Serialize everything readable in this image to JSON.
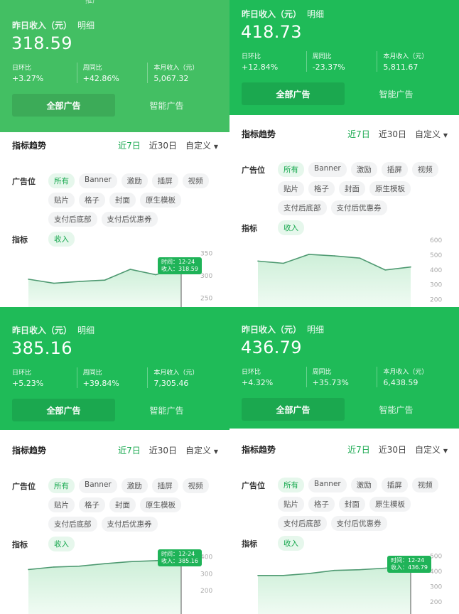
{
  "colors": {
    "header_q1": "#43bf63",
    "header": "#1fbb58",
    "accent": "#17a84e"
  },
  "common": {
    "cut_label": "推广",
    "title": "昨日收入（元）",
    "detail_link": "明细",
    "stat_labels": [
      "日环比",
      "周同比",
      "本月收入（元）"
    ],
    "tabs": [
      "全部广告",
      "智能广告"
    ],
    "trend_title": "指标趋势",
    "ranges": [
      "近7日",
      "近30日",
      "自定义"
    ],
    "slot_label": "广告位",
    "slot_rows": [
      [
        "所有",
        "Banner",
        "激励",
        "插屏",
        "视频"
      ],
      [
        "贴片",
        "格子",
        "封面",
        "原生模板"
      ],
      [
        "支付后底部",
        "支付后优惠券"
      ]
    ],
    "metric_label": "指标",
    "metric": "收入",
    "dropdown_icon": "caret-down-icon"
  },
  "panels": [
    {
      "value": "318.59",
      "stats": [
        "+3.27%",
        "+42.86%",
        "5,067.32"
      ],
      "tooltip": [
        "时间：12-24",
        "收入：318.59"
      ]
    },
    {
      "value": "418.73",
      "stats": [
        "+12.84%",
        "-23.37%",
        "5,811.67"
      ],
      "tooltip": null
    },
    {
      "value": "385.16",
      "stats": [
        "+5.23%",
        "+39.84%",
        "7,305.46"
      ],
      "tooltip": [
        "时间：12-24",
        "收入：385.16"
      ]
    },
    {
      "value": "436.79",
      "stats": [
        "+4.32%",
        "+35.73%",
        "6,438.59"
      ],
      "tooltip": [
        "时间：12-24",
        "收入：436.79"
      ]
    }
  ],
  "chart_data": [
    {
      "type": "area",
      "series": [
        {
          "values": [
            292,
            283,
            287,
            290,
            314,
            302,
            318.59
          ]
        }
      ],
      "yticks": [
        "350",
        "300",
        "250"
      ],
      "ylim": [
        230,
        360
      ]
    },
    {
      "type": "area",
      "series": [
        {
          "values": [
            460,
            445,
            505,
            495,
            480,
            400,
            420
          ]
        }
      ],
      "yticks": [
        "600",
        "500",
        "400",
        "300",
        "200"
      ],
      "ylim": [
        150,
        620
      ]
    },
    {
      "type": "area",
      "series": [
        {
          "values": [
            325,
            340,
            345,
            360,
            372,
            378,
            385.16
          ]
        }
      ],
      "yticks": [
        "400",
        "300",
        "200"
      ],
      "ylim": [
        60,
        420
      ]
    },
    {
      "type": "area",
      "series": [
        {
          "values": [
            372,
            372,
            385,
            405,
            410,
            420,
            436.79
          ]
        }
      ],
      "yticks": [
        "500",
        "400",
        "300",
        "200"
      ],
      "ylim": [
        120,
        520
      ]
    }
  ]
}
